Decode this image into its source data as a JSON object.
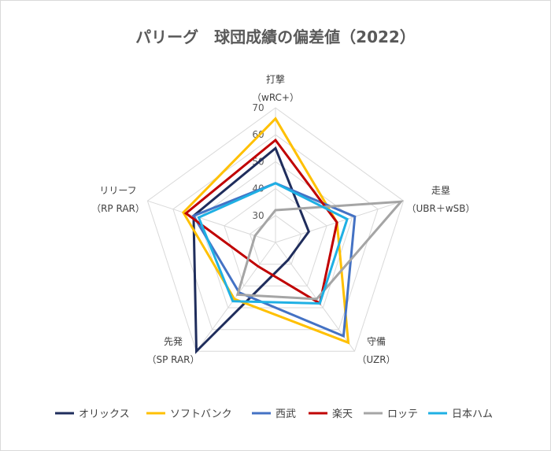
{
  "chart_data": {
    "type": "radar",
    "title": "パリーグ　球団成績の偏差値（2022）",
    "axes": [
      {
        "name": "打撃",
        "metric": "（wRC+）"
      },
      {
        "name": "走塁",
        "metric": "（UBR＋wSB）"
      },
      {
        "name": "守備",
        "metric": "（UZR）"
      },
      {
        "name": "先発",
        "metric": "（SP RAR）"
      },
      {
        "name": "リリーフ",
        "metric": "（RP RAR）"
      }
    ],
    "rlim": [
      20,
      70
    ],
    "ticks": [
      "30",
      "40",
      "50",
      "60",
      "70"
    ],
    "grid": true,
    "legend": "bottom",
    "series": [
      {
        "name": "オリックス",
        "color": "#1f2d5c",
        "values": [
          55,
          33,
          28,
          70,
          52
        ]
      },
      {
        "name": "ソフトバンク",
        "color": "#ffc000",
        "values": [
          66,
          44,
          66,
          46,
          56
        ]
      },
      {
        "name": "西武",
        "color": "#4472c4",
        "values": [
          42,
          51,
          63,
          43,
          52
        ]
      },
      {
        "name": "楽天",
        "color": "#c00000",
        "values": [
          58,
          44,
          48,
          31,
          55
        ]
      },
      {
        "name": "ロッテ",
        "color": "#a5a5a5",
        "values": [
          32,
          69,
          46,
          44,
          28
        ]
      },
      {
        "name": "日本ハム",
        "color": "#1fb0e4",
        "values": [
          42,
          48,
          48,
          47,
          50
        ]
      }
    ]
  }
}
